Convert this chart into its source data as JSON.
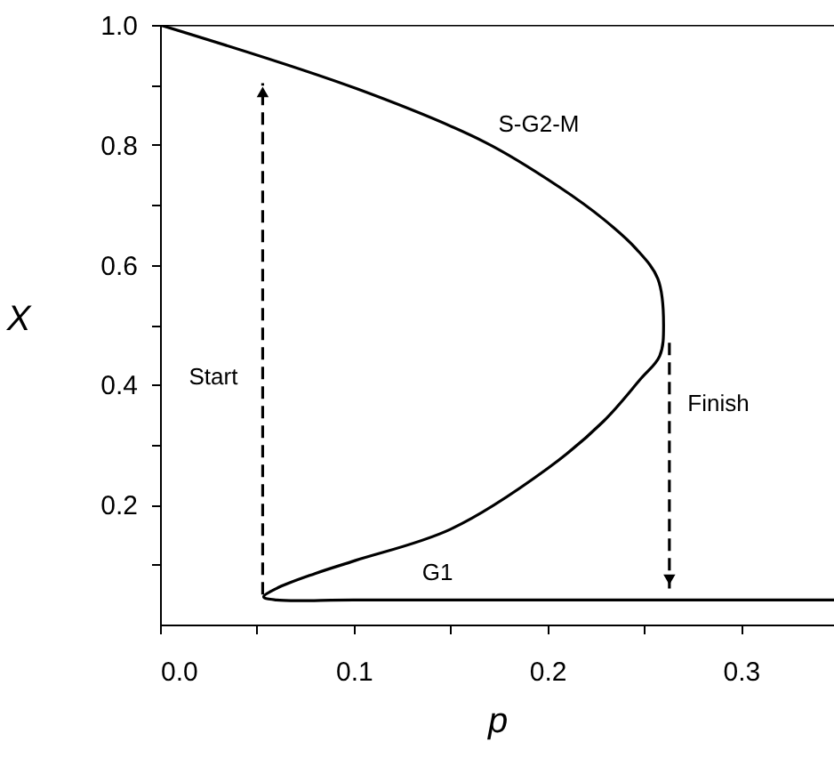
{
  "chart_data": {
    "type": "line",
    "xlabel": "p",
    "ylabel": "X",
    "xlim": [
      0,
      0.348
    ],
    "ylim": [
      0,
      1.0
    ],
    "xticks": [
      {
        "value": 0,
        "label": "0.0"
      },
      {
        "value": 0.05,
        "label": null
      },
      0.1,
      {
        "value": 0.15,
        "label": null
      },
      0.2,
      {
        "value": 0.25,
        "label": null
      },
      0.3
    ],
    "yticks": [
      {
        "value": 0.1,
        "label": null
      },
      0.2,
      {
        "value": 0.3,
        "label": null
      },
      0.4,
      {
        "value": 0.5,
        "label": null
      },
      0.6,
      {
        "value": 0.7,
        "label": null
      },
      0.8,
      {
        "value": 0.9,
        "label": null
      },
      {
        "value": 1.0,
        "label": "1.0"
      }
    ],
    "grid": false,
    "series": [
      {
        "color": "#000000",
        "line_style": "solid",
        "marker": "none",
        "x": [
          0.348,
          0.2,
          0.1,
          0.06,
          0.0535,
          0.06,
          0.08,
          0.101,
          0.15,
          0.2,
          0.229,
          0.248,
          0.258,
          0.26,
          0.257,
          0.246,
          0.229,
          0.206,
          0.168,
          0.102,
          0.0
        ],
        "values": [
          0.041,
          0.041,
          0.041,
          0.041,
          0.046,
          0.06,
          0.085,
          0.107,
          0.159,
          0.26,
          0.339,
          0.409,
          0.448,
          0.5,
          0.577,
          0.626,
          0.676,
          0.73,
          0.804,
          0.893,
          1.0
        ]
      },
      {
        "color": "#000000",
        "line_style": "solid",
        "marker": "none",
        "x": [
          0.0,
          0.348
        ],
        "values": [
          1.0,
          1.0
        ]
      },
      {
        "color": "#000000",
        "line_style": "dashed",
        "x": [
          0.053,
          0.053
        ],
        "values": [
          0.05,
          0.903
        ]
      },
      {
        "color": "#000000",
        "line_style": "dashed",
        "x": [
          0.263,
          0.263
        ],
        "values": [
          0.47,
          0.06
        ]
      }
    ],
    "annotations": [
      "S-G2-M",
      "G1",
      "Start",
      "Finish"
    ]
  }
}
